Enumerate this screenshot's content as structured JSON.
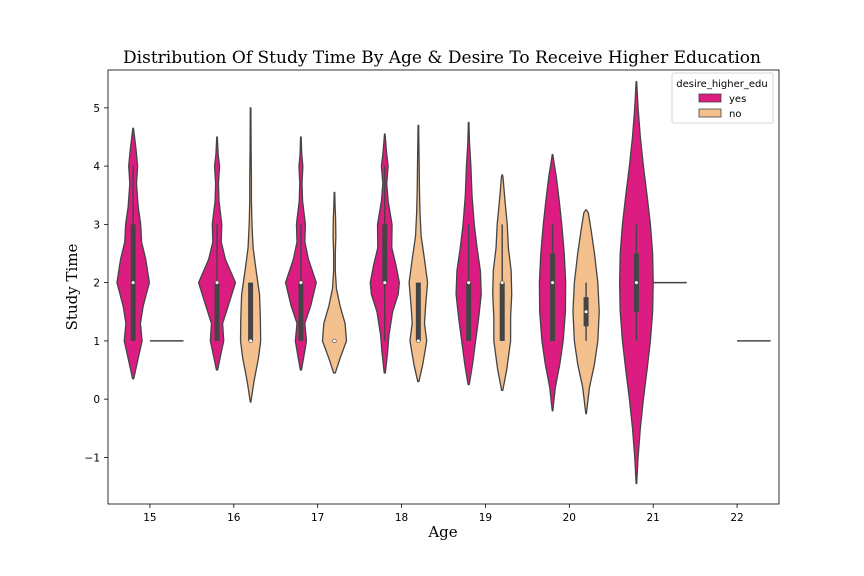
{
  "chart_data": {
    "type": "violin",
    "title": "Distribution Of Study Time By Age & Desire To Receive Higher Education",
    "xlabel": "Age",
    "ylabel": "Study Time",
    "categories": [
      "15",
      "16",
      "17",
      "18",
      "19",
      "20",
      "21",
      "22"
    ],
    "ylim": [
      -1.8,
      5.65
    ],
    "yticks": [
      -1,
      0,
      1,
      2,
      3,
      4,
      5
    ],
    "grid": false,
    "legend": {
      "title": "desire_higher_edu",
      "placement": "top-right",
      "entries": [
        "yes",
        "no"
      ]
    },
    "colors": {
      "yes": "#dd1c82",
      "no": "#f3c08e",
      "outline": "#444444",
      "box": "#444444"
    },
    "series": [
      {
        "name": "yes",
        "groups": [
          {
            "age": "15",
            "min": 1,
            "q1": 1,
            "median": 2,
            "q3": 3,
            "max": 4,
            "kde": [
              [
                0.35,
                0.02
              ],
              [
                0.7,
                0.18
              ],
              [
                1.0,
                0.32
              ],
              [
                1.3,
                0.26
              ],
              [
                1.6,
                0.36
              ],
              [
                2.0,
                0.58
              ],
              [
                2.4,
                0.45
              ],
              [
                2.7,
                0.3
              ],
              [
                3.0,
                0.27
              ],
              [
                3.3,
                0.18
              ],
              [
                3.7,
                0.12
              ],
              [
                4.0,
                0.16
              ],
              [
                4.3,
                0.1
              ],
              [
                4.65,
                0.01
              ]
            ]
          },
          {
            "age": "16",
            "min": 1,
            "q1": 1,
            "median": 2,
            "q3": 2,
            "max": 3,
            "kde": [
              [
                0.5,
                0.02
              ],
              [
                0.8,
                0.15
              ],
              [
                1.0,
                0.24
              ],
              [
                1.3,
                0.2
              ],
              [
                1.6,
                0.4
              ],
              [
                2.0,
                0.66
              ],
              [
                2.4,
                0.3
              ],
              [
                2.7,
                0.15
              ],
              [
                3.0,
                0.17
              ],
              [
                3.4,
                0.07
              ],
              [
                3.7,
                0.05
              ],
              [
                4.0,
                0.09
              ],
              [
                4.2,
                0.04
              ],
              [
                4.5,
                0.01
              ]
            ]
          },
          {
            "age": "17",
            "min": 1,
            "q1": 1,
            "median": 2,
            "q3": 2,
            "max": 3,
            "kde": [
              [
                0.5,
                0.02
              ],
              [
                0.8,
                0.13
              ],
              [
                1.0,
                0.2
              ],
              [
                1.3,
                0.14
              ],
              [
                1.6,
                0.35
              ],
              [
                2.0,
                0.55
              ],
              [
                2.4,
                0.27
              ],
              [
                2.7,
                0.14
              ],
              [
                3.0,
                0.16
              ],
              [
                3.4,
                0.06
              ],
              [
                3.7,
                0.04
              ],
              [
                4.0,
                0.07
              ],
              [
                4.2,
                0.03
              ],
              [
                4.5,
                0.01
              ]
            ]
          },
          {
            "age": "18",
            "min": 1,
            "q1": 2,
            "median": 2,
            "q3": 3,
            "max": 4,
            "kde": [
              [
                0.45,
                0.02
              ],
              [
                0.8,
                0.1
              ],
              [
                1.1,
                0.15
              ],
              [
                1.5,
                0.28
              ],
              [
                1.8,
                0.48
              ],
              [
                2.0,
                0.52
              ],
              [
                2.3,
                0.4
              ],
              [
                2.6,
                0.25
              ],
              [
                3.0,
                0.26
              ],
              [
                3.4,
                0.12
              ],
              [
                3.7,
                0.07
              ],
              [
                4.0,
                0.12
              ],
              [
                4.25,
                0.06
              ],
              [
                4.55,
                0.01
              ]
            ]
          },
          {
            "age": "19",
            "min": 1,
            "q1": 1,
            "median": 2,
            "q3": 2,
            "max": 3,
            "kde": [
              [
                0.25,
                0.02
              ],
              [
                0.6,
                0.14
              ],
              [
                1.0,
                0.25
              ],
              [
                1.4,
                0.36
              ],
              [
                1.8,
                0.45
              ],
              [
                2.2,
                0.42
              ],
              [
                2.6,
                0.3
              ],
              [
                3.0,
                0.2
              ],
              [
                3.5,
                0.12
              ],
              [
                4.0,
                0.08
              ],
              [
                4.4,
                0.03
              ],
              [
                4.75,
                0.01
              ]
            ]
          },
          {
            "age": "20",
            "min": 1,
            "q1": 1,
            "median": 2,
            "q3": 2.5,
            "max": 3,
            "kde": [
              [
                -0.2,
                0.01
              ],
              [
                0.2,
                0.1
              ],
              [
                0.6,
                0.26
              ],
              [
                1.0,
                0.38
              ],
              [
                1.5,
                0.46
              ],
              [
                2.0,
                0.47
              ],
              [
                2.5,
                0.42
              ],
              [
                3.0,
                0.33
              ],
              [
                3.4,
                0.24
              ],
              [
                3.8,
                0.14
              ],
              [
                4.1,
                0.04
              ],
              [
                4.2,
                0.01
              ]
            ]
          },
          {
            "age": "21",
            "min": 1,
            "q1": 1.5,
            "median": 2,
            "q3": 2.5,
            "max": 3,
            "kde": [
              [
                -1.45,
                0.01
              ],
              [
                -1.0,
                0.06
              ],
              [
                -0.5,
                0.14
              ],
              [
                0.0,
                0.25
              ],
              [
                0.5,
                0.38
              ],
              [
                1.0,
                0.5
              ],
              [
                1.5,
                0.58
              ],
              [
                2.0,
                0.6
              ],
              [
                2.5,
                0.58
              ],
              [
                3.0,
                0.5
              ],
              [
                3.5,
                0.38
              ],
              [
                4.0,
                0.25
              ],
              [
                4.5,
                0.14
              ],
              [
                5.0,
                0.06
              ],
              [
                5.45,
                0.01
              ]
            ]
          }
        ]
      },
      {
        "name": "no",
        "groups": [
          {
            "age": "15",
            "single": 1
          },
          {
            "age": "16",
            "min": 1,
            "q1": 1,
            "median": 1,
            "q3": 2,
            "max": 2,
            "kde": [
              [
                -0.05,
                0.01
              ],
              [
                0.3,
                0.12
              ],
              [
                0.7,
                0.28
              ],
              [
                1.0,
                0.36
              ],
              [
                1.4,
                0.35
              ],
              [
                1.8,
                0.32
              ],
              [
                2.2,
                0.2
              ],
              [
                2.6,
                0.09
              ],
              [
                3.0,
                0.05
              ],
              [
                3.4,
                0.03
              ],
              [
                3.8,
                0.03
              ],
              [
                4.2,
                0.02
              ],
              [
                4.6,
                0.015
              ],
              [
                5.0,
                0.01
              ]
            ]
          },
          {
            "age": "17",
            "min": 1,
            "q1": 1,
            "median": 1,
            "q3": 1,
            "max": 1,
            "kde": [
              [
                0.45,
                0.03
              ],
              [
                0.7,
                0.2
              ],
              [
                1.0,
                0.43
              ],
              [
                1.3,
                0.38
              ],
              [
                1.6,
                0.2
              ],
              [
                1.9,
                0.07
              ],
              [
                2.2,
                0.03
              ],
              [
                2.5,
                0.03
              ],
              [
                2.8,
                0.05
              ],
              [
                3.1,
                0.04
              ],
              [
                3.35,
                0.02
              ],
              [
                3.55,
                0.01
              ]
            ]
          },
          {
            "age": "18",
            "min": 1,
            "q1": 1,
            "median": 1,
            "q3": 2,
            "max": 2,
            "kde": [
              [
                0.3,
                0.02
              ],
              [
                0.6,
                0.16
              ],
              [
                1.0,
                0.3
              ],
              [
                1.3,
                0.22
              ],
              [
                1.6,
                0.26
              ],
              [
                2.0,
                0.33
              ],
              [
                2.4,
                0.22
              ],
              [
                2.8,
                0.1
              ],
              [
                3.2,
                0.06
              ],
              [
                3.6,
                0.04
              ],
              [
                4.0,
                0.03
              ],
              [
                4.35,
                0.02
              ],
              [
                4.7,
                0.01
              ]
            ]
          },
          {
            "age": "19",
            "min": 1,
            "q1": 1,
            "median": 2,
            "q3": 2,
            "max": 3,
            "kde": [
              [
                0.15,
                0.02
              ],
              [
                0.5,
                0.16
              ],
              [
                1.0,
                0.3
              ],
              [
                1.4,
                0.3
              ],
              [
                1.8,
                0.34
              ],
              [
                2.2,
                0.32
              ],
              [
                2.6,
                0.22
              ],
              [
                3.0,
                0.18
              ],
              [
                3.4,
                0.1
              ],
              [
                3.8,
                0.03
              ],
              [
                3.85,
                0.01
              ]
            ]
          },
          {
            "age": "20",
            "min": 1,
            "q1": 1.25,
            "median": 1.5,
            "q3": 1.75,
            "max": 2,
            "kde": [
              [
                -0.25,
                0.01
              ],
              [
                0.2,
                0.12
              ],
              [
                0.6,
                0.3
              ],
              [
                1.0,
                0.42
              ],
              [
                1.5,
                0.47
              ],
              [
                2.0,
                0.42
              ],
              [
                2.5,
                0.3
              ],
              [
                2.9,
                0.18
              ],
              [
                3.2,
                0.08
              ],
              [
                3.25,
                0.01
              ]
            ]
          },
          {
            "age": "21",
            "single": 2
          },
          {
            "age": "22",
            "single": 1
          }
        ]
      }
    ]
  }
}
